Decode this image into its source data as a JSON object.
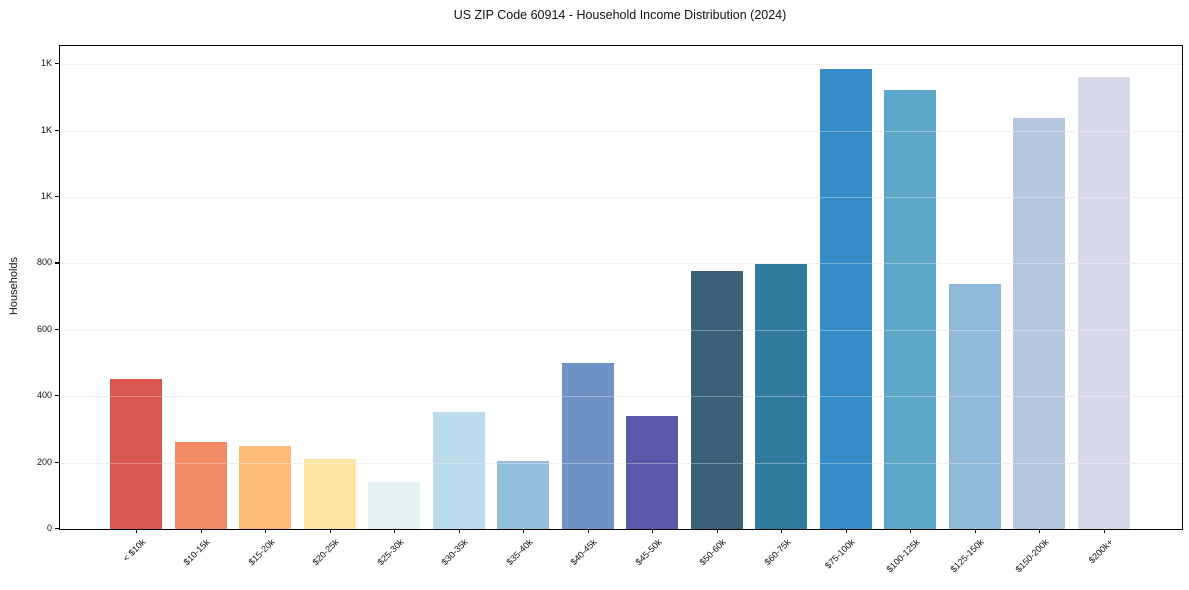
{
  "figure": {
    "background": "#ffffff",
    "frame_color": "#000000",
    "gridline_color": "#e9e9e9"
  },
  "chart_data": {
    "type": "bar",
    "title": "US ZIP Code 60914 - Household Income Distribution (2024)",
    "xlabel": "",
    "ylabel": "Households",
    "categories": [
      "< $10k",
      "$10-15k",
      "$15-20k",
      "$20-25k",
      "$25-30k",
      "$30-35k",
      "$35-40k",
      "$40-45k",
      "$45-50k",
      "$50-60k",
      "$60-75k",
      "$75-100k",
      "$100-125k",
      "$125-150k",
      "$150-200k",
      "$200k+"
    ],
    "values": [
      453,
      262,
      249,
      212,
      143,
      351,
      205,
      500,
      339,
      776,
      798,
      1386,
      1321,
      737,
      1238,
      1362
    ],
    "bar_colors": [
      "#d9574e",
      "#f28b66",
      "#fcba79",
      "#fde3a1",
      "#e4f1f3",
      "#badcec",
      "#92bedb",
      "#6e92c6",
      "#5c5aa8",
      "#3a5f78",
      "#337a9f",
      "#368cc6",
      "#5ea7c9",
      "#90bad9",
      "#b6c7e0",
      "#d7d9e7"
    ],
    "ylim": [
      0,
      1455
    ],
    "yticks": {
      "values": [
        0,
        200,
        400,
        600,
        800,
        1000,
        1200,
        1400
      ],
      "labels": [
        "0",
        "200",
        "400",
        "600",
        "800",
        "1K",
        "1K",
        "1K"
      ]
    },
    "grid": "horizontal",
    "legend": "none",
    "xtick_rotation_deg": 45
  }
}
